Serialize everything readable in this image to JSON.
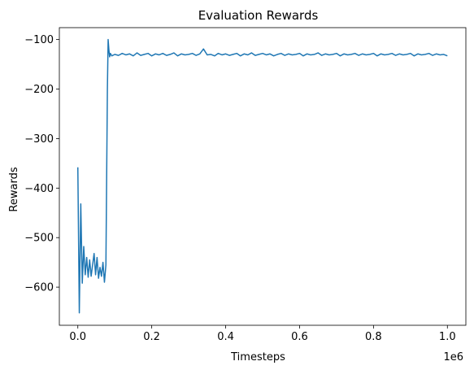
{
  "chart_data": {
    "type": "line",
    "title": "Evaluation Rewards",
    "xlabel": "Timesteps",
    "ylabel": "Rewards",
    "x_offset_text": "1e6",
    "x_ticks": [
      {
        "value": 0.0,
        "label": "0.0"
      },
      {
        "value": 0.2,
        "label": "0.2"
      },
      {
        "value": 0.4,
        "label": "0.4"
      },
      {
        "value": 0.6,
        "label": "0.6"
      },
      {
        "value": 0.8,
        "label": "0.8"
      },
      {
        "value": 1.0,
        "label": "1.0"
      }
    ],
    "y_ticks": [
      {
        "value": -100,
        "label": "−100"
      },
      {
        "value": -200,
        "label": "−200"
      },
      {
        "value": -300,
        "label": "−300"
      },
      {
        "value": -400,
        "label": "−400"
      },
      {
        "value": -500,
        "label": "−500"
      },
      {
        "value": -600,
        "label": "−600"
      }
    ],
    "xlim": [
      -0.05,
      1.05
    ],
    "ylim": [
      -677,
      -76
    ],
    "grid": false,
    "series": [
      {
        "color": "#1f77b4",
        "x": [
          0.0,
          0.004,
          0.008,
          0.012,
          0.016,
          0.02,
          0.024,
          0.028,
          0.032,
          0.036,
          0.04,
          0.044,
          0.048,
          0.052,
          0.056,
          0.06,
          0.064,
          0.068,
          0.072,
          0.076,
          0.08,
          0.082,
          0.084,
          0.086,
          0.088,
          0.092,
          0.1,
          0.11,
          0.12,
          0.13,
          0.14,
          0.15,
          0.16,
          0.17,
          0.18,
          0.19,
          0.2,
          0.21,
          0.22,
          0.23,
          0.24,
          0.25,
          0.26,
          0.27,
          0.28,
          0.29,
          0.3,
          0.31,
          0.32,
          0.33,
          0.34,
          0.35,
          0.36,
          0.37,
          0.38,
          0.39,
          0.4,
          0.41,
          0.42,
          0.43,
          0.44,
          0.45,
          0.46,
          0.47,
          0.48,
          0.49,
          0.5,
          0.51,
          0.52,
          0.53,
          0.54,
          0.55,
          0.56,
          0.57,
          0.58,
          0.59,
          0.6,
          0.61,
          0.62,
          0.63,
          0.64,
          0.65,
          0.66,
          0.67,
          0.68,
          0.69,
          0.7,
          0.71,
          0.72,
          0.73,
          0.74,
          0.75,
          0.76,
          0.77,
          0.78,
          0.79,
          0.8,
          0.81,
          0.82,
          0.83,
          0.84,
          0.85,
          0.86,
          0.87,
          0.88,
          0.89,
          0.9,
          0.91,
          0.92,
          0.93,
          0.94,
          0.95,
          0.96,
          0.97,
          0.98,
          0.99,
          1.0
        ],
        "values": [
          -358,
          -652,
          -432,
          -592,
          -518,
          -575,
          -540,
          -580,
          -545,
          -578,
          -555,
          -532,
          -575,
          -540,
          -582,
          -560,
          -578,
          -550,
          -590,
          -555,
          -200,
          -100,
          -120,
          -135,
          -128,
          -133,
          -130,
          -132,
          -128,
          -131,
          -129,
          -133,
          -127,
          -132,
          -130,
          -128,
          -133,
          -129,
          -131,
          -128,
          -132,
          -130,
          -127,
          -133,
          -129,
          -131,
          -130,
          -128,
          -132,
          -129,
          -119,
          -131,
          -130,
          -133,
          -128,
          -131,
          -129,
          -132,
          -130,
          -128,
          -133,
          -129,
          -131,
          -127,
          -132,
          -130,
          -128,
          -131,
          -129,
          -133,
          -130,
          -128,
          -132,
          -129,
          -131,
          -130,
          -128,
          -133,
          -129,
          -131,
          -130,
          -127,
          -132,
          -129,
          -131,
          -130,
          -128,
          -133,
          -129,
          -131,
          -130,
          -128,
          -132,
          -129,
          -131,
          -130,
          -128,
          -133,
          -129,
          -131,
          -130,
          -128,
          -132,
          -129,
          -131,
          -130,
          -128,
          -133,
          -129,
          -131,
          -130,
          -128,
          -132,
          -129,
          -131,
          -130,
          -133
        ]
      }
    ]
  }
}
